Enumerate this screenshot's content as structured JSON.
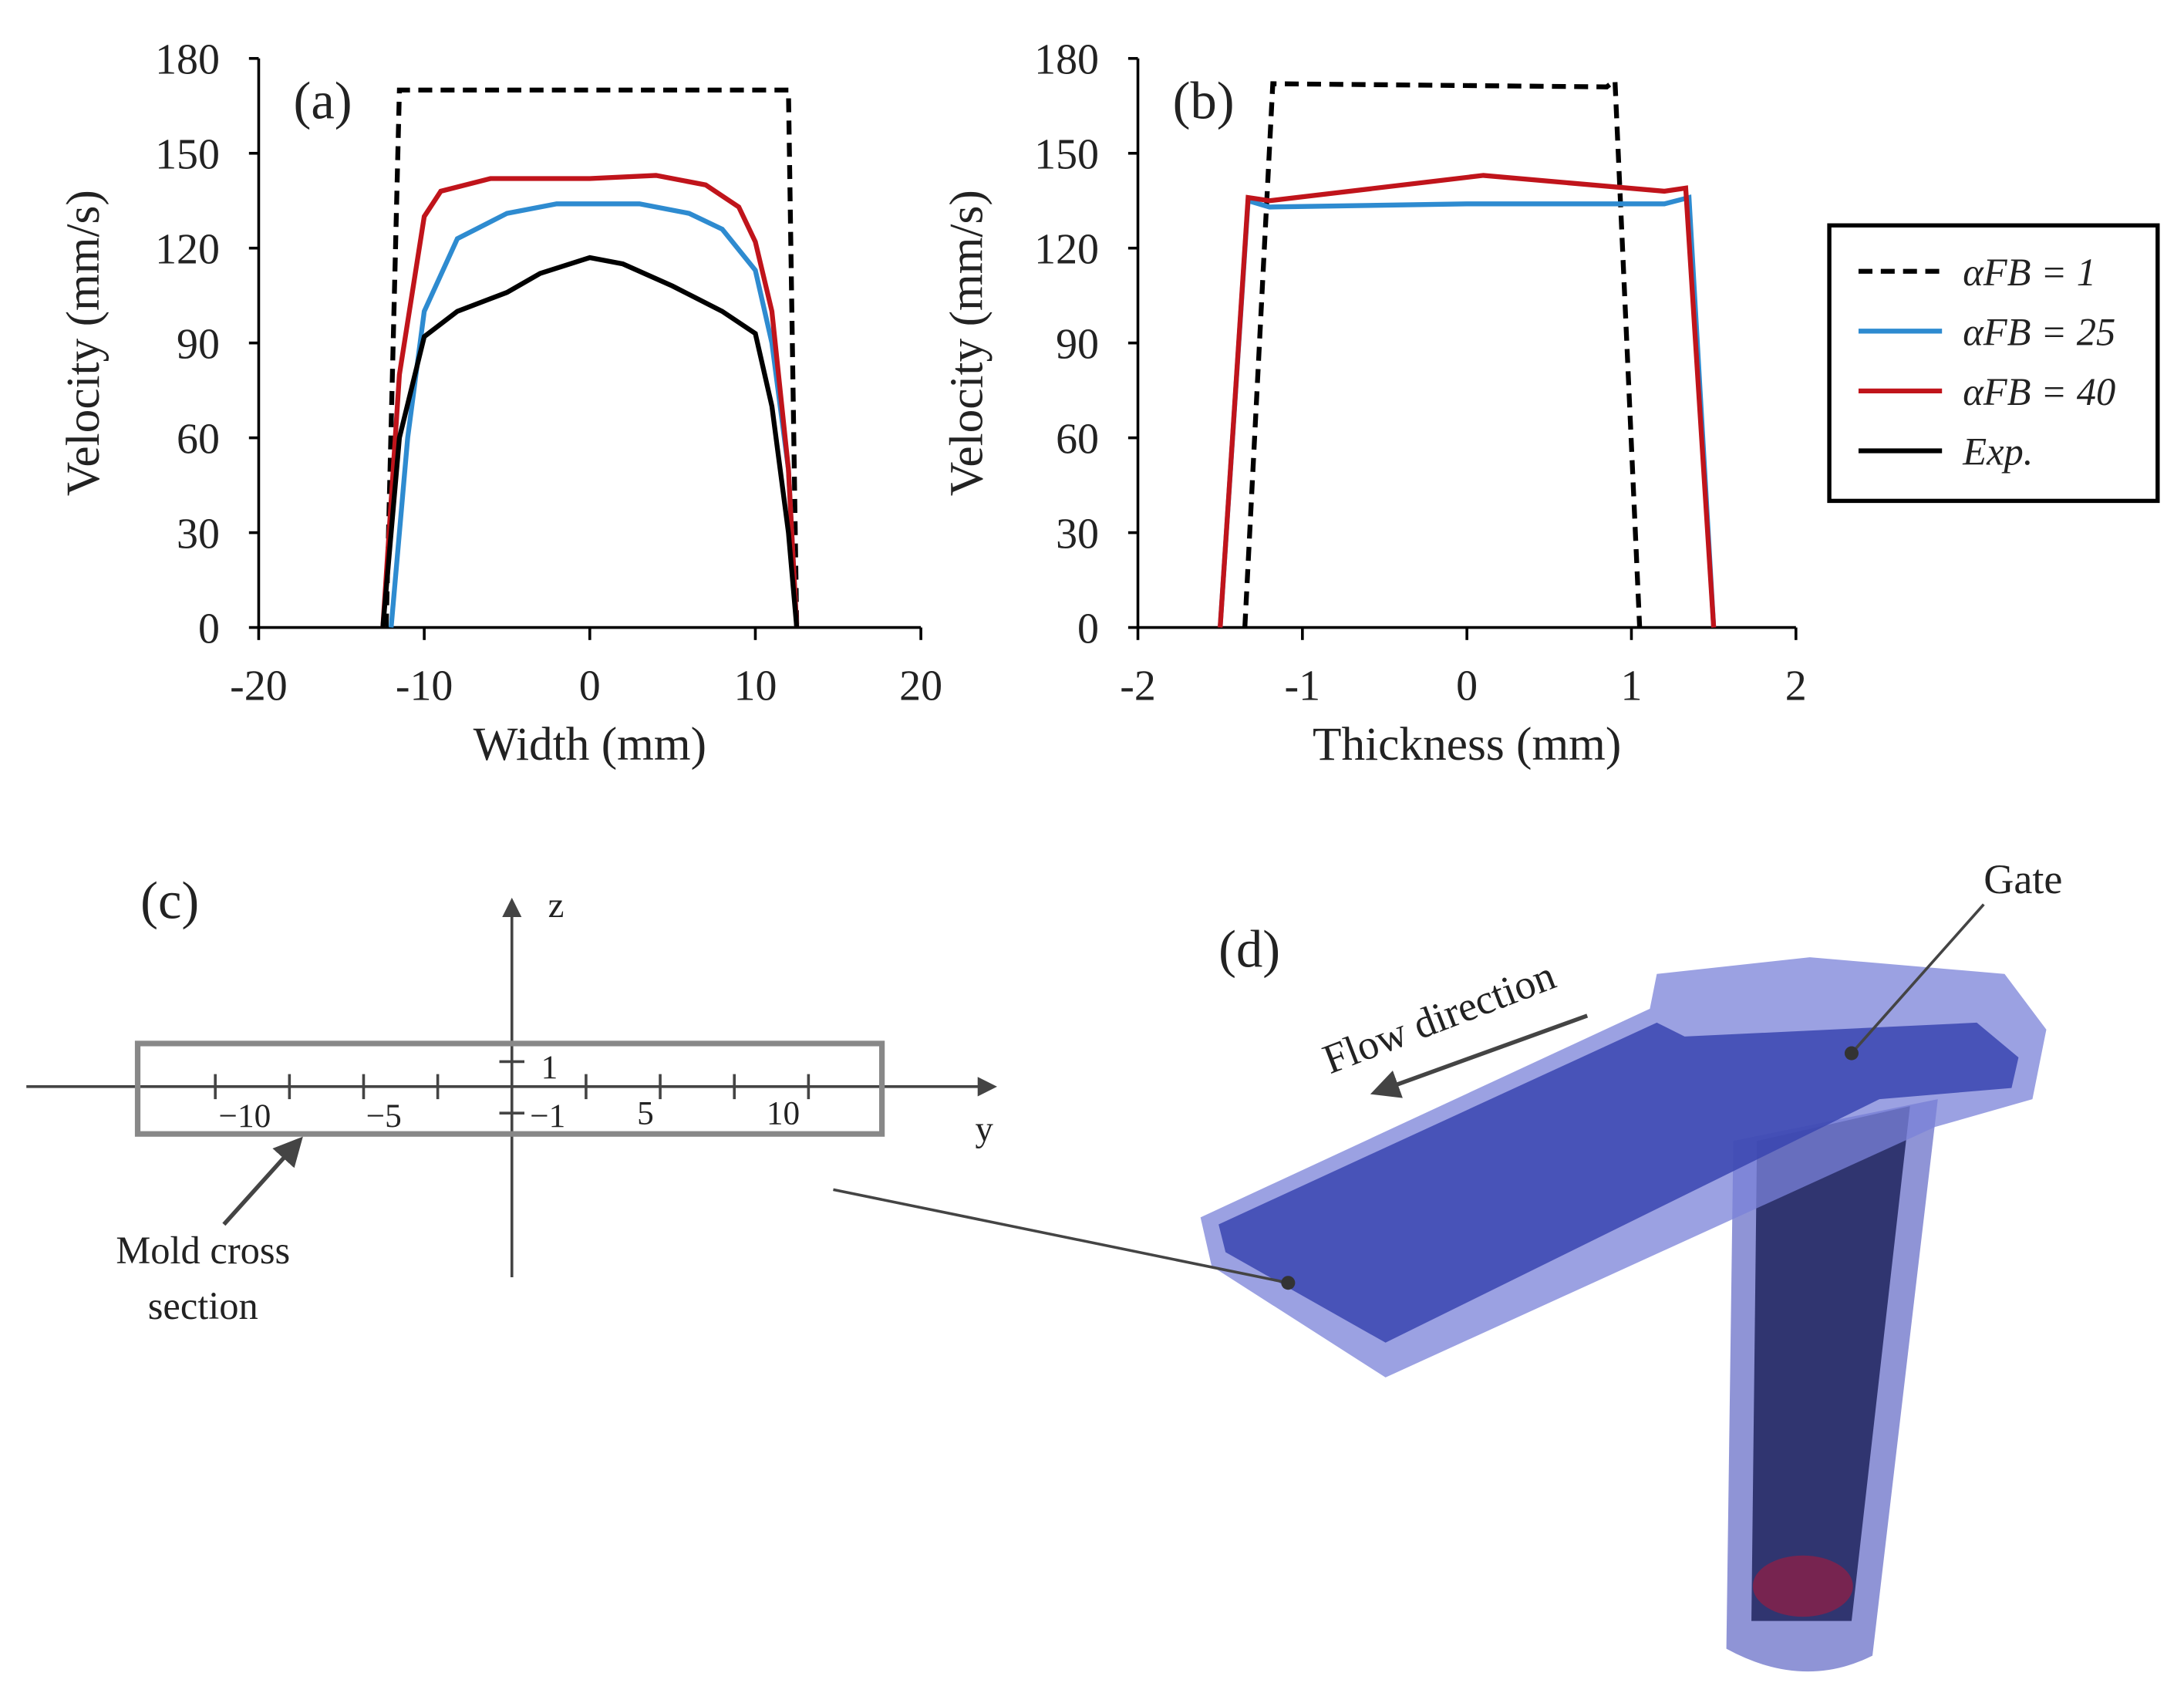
{
  "chart_data": [
    {
      "type": "line",
      "panel": "(a)",
      "x_label": "Width (mm)",
      "y_label": "Velocity (mm/s)",
      "xlim": [
        -20,
        20
      ],
      "ylim": [
        0,
        180
      ],
      "xticks": [
        -20,
        -10,
        0,
        10,
        20
      ],
      "yticks": [
        0,
        30,
        60,
        90,
        120,
        150,
        180
      ],
      "series": [
        {
          "name": "αFB = 1",
          "color": "#000000",
          "style": "dashed",
          "x": [
            -12.3,
            -11.5,
            12,
            12.5
          ],
          "values": [
            0,
            170,
            170,
            0
          ]
        },
        {
          "name": "αFB = 25",
          "color": "#2e8bd0",
          "style": "solid",
          "x": [
            -12,
            -11,
            -10,
            -8,
            -5,
            -2,
            0,
            3,
            6,
            8,
            10,
            11,
            12,
            12.5
          ],
          "values": [
            0,
            60,
            100,
            123,
            131,
            134,
            134,
            134,
            131,
            126,
            113,
            90,
            50,
            0
          ]
        },
        {
          "name": "αFB = 40",
          "color": "#c0141b",
          "style": "solid",
          "x": [
            -12.5,
            -11.5,
            -10,
            -9,
            -6,
            0,
            4,
            7,
            9,
            10,
            11,
            12,
            12.5
          ],
          "values": [
            0,
            80,
            130,
            138,
            142,
            142,
            143,
            140,
            133,
            122,
            100,
            50,
            0
          ]
        },
        {
          "name": "Exp.",
          "color": "#000000",
          "style": "solid",
          "x": [
            -12.5,
            -11.5,
            -10,
            -8,
            -5,
            -3,
            0,
            2,
            5,
            8,
            10,
            11,
            12,
            12.5
          ],
          "values": [
            0,
            60,
            92,
            100,
            106,
            112,
            117,
            115,
            108,
            100,
            93,
            70,
            30,
            0
          ]
        }
      ]
    },
    {
      "type": "line",
      "panel": "(b)",
      "x_label": "Thickness (mm)",
      "y_label": "Velocity (mm/s)",
      "xlim": [
        -2,
        2
      ],
      "ylim": [
        0,
        180
      ],
      "xticks": [
        -2,
        -1,
        0,
        1,
        2
      ],
      "yticks": [
        0,
        30,
        60,
        90,
        120,
        150,
        180
      ],
      "series": [
        {
          "name": "αFB = 1",
          "color": "#000000",
          "style": "dashed",
          "x": [
            -1.35,
            -1.18,
            0.85,
            0.9,
            1.05
          ],
          "values": [
            0,
            172,
            171,
            173,
            0
          ]
        },
        {
          "name": "αFB = 25",
          "color": "#2e8bd0",
          "style": "solid",
          "x": [
            -1.5,
            -1.33,
            -1.2,
            0,
            1.2,
            1.35,
            1.5
          ],
          "values": [
            0,
            135,
            133,
            134,
            134,
            136,
            0
          ]
        },
        {
          "name": "αFB = 40",
          "color": "#c0141b",
          "style": "solid",
          "x": [
            -1.5,
            -1.33,
            -1.2,
            0.1,
            1.2,
            1.33,
            1.5
          ],
          "values": [
            0,
            136,
            135,
            143,
            138,
            139,
            0
          ]
        }
      ]
    }
  ],
  "diagram": {
    "panel_c": "(c)",
    "axis_z": "z",
    "axis_y": "y",
    "z_ticks": [
      "1",
      "−1"
    ],
    "y_ticks": [
      "−10",
      "−5",
      "5",
      "10"
    ],
    "mold_label": [
      "Mold cross",
      "section"
    ],
    "panel_d": "(d)",
    "gate": "Gate",
    "flow": "Flow direction"
  }
}
